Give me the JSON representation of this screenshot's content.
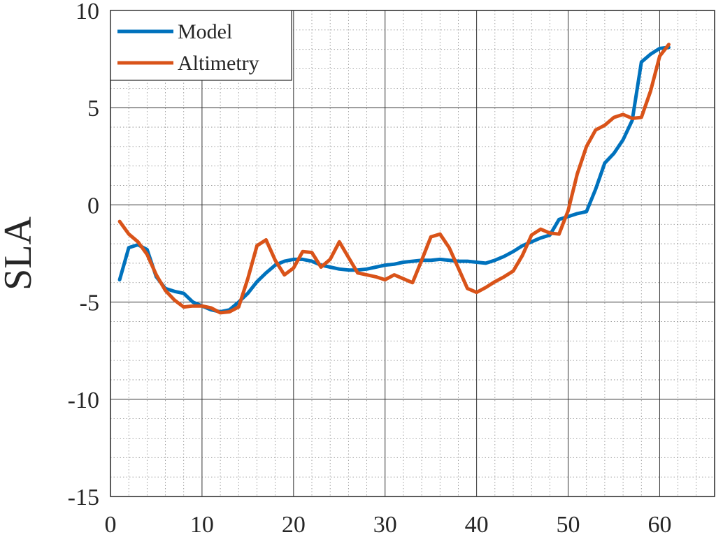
{
  "chart_data": {
    "type": "line",
    "title": "",
    "xlabel": "",
    "ylabel": "SLA",
    "xlim": [
      0,
      66
    ],
    "ylim": [
      -15,
      10
    ],
    "xticks": [
      0,
      10,
      20,
      30,
      40,
      50,
      60
    ],
    "yticks": [
      10,
      5,
      0,
      -5,
      -10,
      -15
    ],
    "xtick_labels": [
      "0",
      "10",
      "20",
      "30",
      "40",
      "50",
      "60"
    ],
    "ytick_labels": [
      "10",
      "5",
      "0",
      "-5",
      "-10",
      "-15"
    ],
    "grid": true,
    "minor_grid": true,
    "legend_position": "top-left",
    "x": [
      1,
      2,
      3,
      4,
      5,
      6,
      7,
      8,
      9,
      10,
      11,
      12,
      13,
      14,
      15,
      16,
      17,
      18,
      19,
      20,
      21,
      22,
      23,
      24,
      25,
      26,
      27,
      28,
      29,
      30,
      31,
      32,
      33,
      34,
      35,
      36,
      37,
      38,
      39,
      40,
      41,
      42,
      43,
      44,
      45,
      46,
      47,
      48,
      49,
      50,
      51,
      52,
      53,
      54,
      55,
      56,
      57,
      58,
      59,
      60,
      61
    ],
    "series": [
      {
        "name": "Model",
        "color": "#0072BD",
        "values": [
          -3.85,
          -2.2,
          -2.05,
          -2.3,
          -3.7,
          -4.3,
          -4.45,
          -4.55,
          -5.0,
          -5.2,
          -5.4,
          -5.5,
          -5.4,
          -5.0,
          -4.55,
          -3.95,
          -3.5,
          -3.1,
          -2.9,
          -2.8,
          -2.8,
          -2.9,
          -3.1,
          -3.2,
          -3.3,
          -3.35,
          -3.35,
          -3.3,
          -3.2,
          -3.1,
          -3.05,
          -2.95,
          -2.9,
          -2.85,
          -2.85,
          -2.8,
          -2.85,
          -2.9,
          -2.9,
          -2.95,
          -3.0,
          -2.85,
          -2.65,
          -2.4,
          -2.1,
          -1.9,
          -1.7,
          -1.55,
          -0.75,
          -0.6,
          -0.45,
          -0.35,
          0.8,
          2.15,
          2.65,
          3.35,
          4.35,
          7.35,
          7.75,
          8.05,
          8.1
        ]
      },
      {
        "name": "Altimetry",
        "color": "#D95319",
        "values": [
          -0.85,
          -1.5,
          -1.9,
          -2.55,
          -3.6,
          -4.4,
          -4.9,
          -5.25,
          -5.2,
          -5.2,
          -5.3,
          -5.55,
          -5.5,
          -5.25,
          -3.8,
          -2.1,
          -1.8,
          -2.85,
          -3.6,
          -3.25,
          -2.4,
          -2.45,
          -3.2,
          -2.8,
          -1.9,
          -2.7,
          -3.5,
          -3.6,
          -3.7,
          -3.85,
          -3.6,
          -3.8,
          -4.0,
          -2.85,
          -1.65,
          -1.5,
          -2.2,
          -3.25,
          -4.3,
          -4.5,
          -4.25,
          -3.95,
          -3.7,
          -3.4,
          -2.6,
          -1.55,
          -1.25,
          -1.45,
          -1.5,
          -0.3,
          1.6,
          3.0,
          3.85,
          4.1,
          4.5,
          4.65,
          4.45,
          4.5,
          5.85,
          7.65,
          8.25
        ]
      }
    ]
  }
}
